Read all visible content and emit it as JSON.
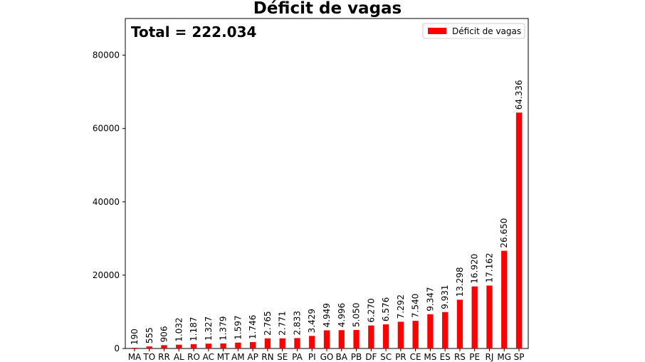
{
  "chart_data": {
    "type": "bar",
    "title": "Déficit de vagas",
    "annotation": "Total = 222.034",
    "xlabel": "",
    "ylabel": "",
    "ylim": [
      0,
      90000
    ],
    "yticks": [
      0,
      20000,
      40000,
      60000,
      80000
    ],
    "ytick_labels": [
      "0",
      "20000",
      "40000",
      "60000",
      "80000"
    ],
    "grid": false,
    "legend_position": "top-right",
    "categories": [
      "MA",
      "TO",
      "RR",
      "AL",
      "RO",
      "AC",
      "MT",
      "AM",
      "AP",
      "RN",
      "SE",
      "PA",
      "PI",
      "GO",
      "BA",
      "PB",
      "DF",
      "SC",
      "PR",
      "CE",
      "MS",
      "ES",
      "RS",
      "PE",
      "RJ",
      "MG",
      "SP"
    ],
    "series": [
      {
        "name": "Déficit de vagas",
        "color": "#ff0000",
        "values": [
          190,
          555,
          906,
          1032,
          1187,
          1327,
          1379,
          1597,
          1746,
          2765,
          2771,
          2833,
          3429,
          4949,
          4996,
          5050,
          6270,
          6576,
          7292,
          7540,
          9347,
          9931,
          13298,
          16920,
          17162,
          26650,
          64336
        ],
        "labels": [
          "190",
          "555",
          "906",
          "1.032",
          "1.187",
          "1.327",
          "1.379",
          "1.597",
          "1.746",
          "2.765",
          "2.771",
          "2.833",
          "3.429",
          "4.949",
          "4.996",
          "5.050",
          "6.270",
          "6.576",
          "7.292",
          "7.540",
          "9.347",
          "9.931",
          "13.298",
          "16.920",
          "17.162",
          "26.650",
          "64.336"
        ]
      }
    ]
  }
}
